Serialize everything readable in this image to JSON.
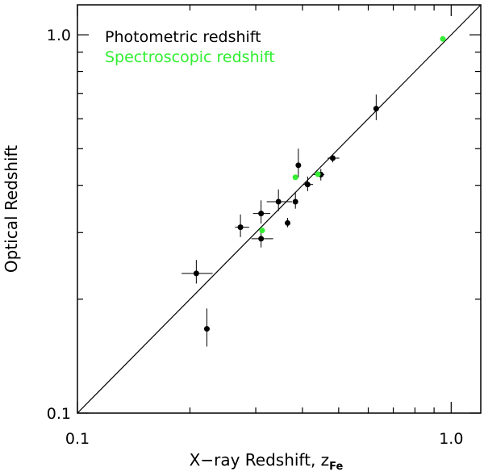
{
  "chart_data": {
    "type": "scatter",
    "xlabel": "X−ray Redshift, z",
    "xlabel_subscript": "Fe",
    "ylabel": "Optical Redshift",
    "xscale": "log",
    "yscale": "log",
    "xlim": [
      0.1,
      1.2
    ],
    "ylim": [
      0.1,
      1.2
    ],
    "x_ticks": [
      {
        "value": 0.1,
        "label": "0.1"
      },
      {
        "value": 1.0,
        "label": "1.0"
      }
    ],
    "y_ticks": [
      {
        "value": 0.1,
        "label": "0.1"
      },
      {
        "value": 1.0,
        "label": "1.0"
      }
    ],
    "legend_position": "top-left",
    "reference_line": {
      "kind": "y=x"
    },
    "series": [
      {
        "name": "Photometric redshift",
        "color": "#000000",
        "points": [
          {
            "x": 0.208,
            "y": 0.234,
            "x_err": [
              0.018,
              0.022
            ],
            "y_err": [
              0.014,
              0.02
            ]
          },
          {
            "x": 0.222,
            "y": 0.167,
            "x_err": [
              0.0,
              0.0
            ],
            "y_err": [
              0.017,
              0.022
            ]
          },
          {
            "x": 0.273,
            "y": 0.31,
            "x_err": [
              0.009,
              0.015
            ],
            "y_err": [
              0.018,
              0.025
            ]
          },
          {
            "x": 0.31,
            "y": 0.337,
            "x_err": [
              0.015,
              0.018
            ],
            "y_err": [
              0.02,
              0.028
            ]
          },
          {
            "x": 0.31,
            "y": 0.289,
            "x_err": [
              0.018,
              0.024
            ],
            "y_err": [
              0.015,
              0.02
            ]
          },
          {
            "x": 0.345,
            "y": 0.362,
            "x_err": [
              0.024,
              0.03
            ],
            "y_err": [
              0.02,
              0.028
            ]
          },
          {
            "x": 0.365,
            "y": 0.318,
            "x_err": [
              0.004,
              0.004
            ],
            "y_err": [
              0.008,
              0.01
            ]
          },
          {
            "x": 0.383,
            "y": 0.362,
            "x_err": [
              0.003,
              0.003
            ],
            "y_err": [
              0.015,
              0.02
            ]
          },
          {
            "x": 0.39,
            "y": 0.452,
            "x_err": [
              0.004,
              0.004
            ],
            "y_err": [
              0.032,
              0.048
            ]
          },
          {
            "x": 0.413,
            "y": 0.402,
            "x_err": [
              0.012,
              0.014
            ],
            "y_err": [
              0.016,
              0.02
            ]
          },
          {
            "x": 0.448,
            "y": 0.427,
            "x_err": [
              0.02,
              0.01
            ],
            "y_err": [
              0.015,
              0.015
            ]
          },
          {
            "x": 0.482,
            "y": 0.472,
            "x_err": [
              0.015,
              0.02
            ],
            "y_err": [
              0.012,
              0.01
            ]
          },
          {
            "x": 0.63,
            "y": 0.638,
            "x_err": [
              0.007,
              0.007
            ],
            "y_err": [
              0.043,
              0.057
            ]
          }
        ]
      },
      {
        "name": "Spectroscopic redshift",
        "color": "#33ee33",
        "points": [
          {
            "x": 0.383,
            "y": 0.42
          },
          {
            "x": 0.312,
            "y": 0.304
          },
          {
            "x": 0.44,
            "y": 0.428
          },
          {
            "x": 0.95,
            "y": 0.975
          }
        ]
      }
    ]
  }
}
